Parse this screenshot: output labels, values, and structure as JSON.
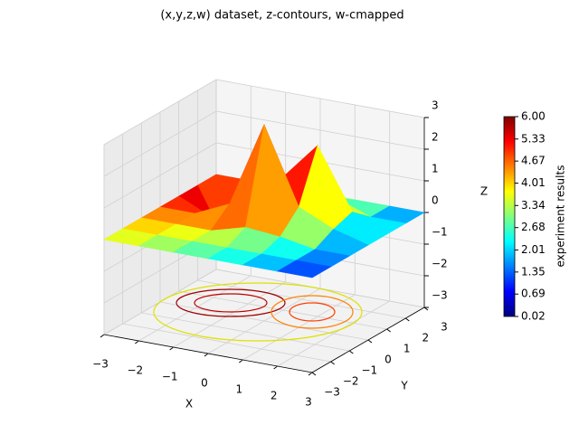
{
  "chart_data": {
    "type": "surface3d",
    "title": "(x,y,z,w) dataset, z-contours, w-cmapped",
    "xlabel": "X",
    "ylabel": "Y",
    "zlabel": "Z",
    "xlim": [
      -3,
      3
    ],
    "ylim": [
      -3,
      3
    ],
    "zlim": [
      -3,
      3
    ],
    "xticks": [
      {
        "value": -3,
        "label": "−3"
      },
      {
        "value": -2,
        "label": "−2"
      },
      {
        "value": -1,
        "label": "−1"
      },
      0,
      1,
      2,
      3
    ],
    "yticks": [
      {
        "value": -3,
        "label": "−3"
      },
      {
        "value": -2,
        "label": "−2"
      },
      {
        "value": -1,
        "label": "−1"
      },
      0,
      1,
      2,
      3
    ],
    "zticks": [
      {
        "value": -3,
        "label": "−3"
      },
      {
        "value": -2,
        "label": "−2"
      },
      {
        "value": -1,
        "label": "−1"
      },
      0,
      1,
      2,
      3
    ],
    "grid": true,
    "colormap": "jet",
    "surface": {
      "x": [
        -3,
        -2,
        -1,
        0,
        1,
        2,
        3
      ],
      "y": [
        -3,
        -2,
        -1,
        0,
        1,
        2,
        3
      ],
      "z": [
        [
          0,
          0,
          0,
          0,
          0,
          0,
          0
        ],
        [
          0,
          0,
          0,
          0,
          0,
          0,
          0
        ],
        [
          0,
          0,
          0,
          0.3,
          0.2,
          0,
          0
        ],
        [
          0,
          0,
          0.5,
          3.2,
          0.8,
          0.3,
          0
        ],
        [
          0,
          -0.5,
          0.3,
          1.2,
          2.4,
          0.5,
          0
        ],
        [
          0,
          -2,
          -0.3,
          0.2,
          0.4,
          0,
          0
        ],
        [
          0,
          0,
          0,
          0,
          0,
          0,
          0
        ]
      ],
      "w": [
        [
          3.6,
          3.2,
          2.8,
          2.4,
          2.0,
          1.4,
          0.8
        ],
        [
          4.0,
          3.6,
          3.2,
          2.8,
          2.4,
          1.8,
          1.0
        ],
        [
          4.4,
          4.0,
          3.8,
          3.6,
          3.0,
          2.2,
          1.2
        ],
        [
          4.8,
          4.6,
          5.2,
          5.9,
          4.8,
          2.6,
          1.4
        ],
        [
          5.2,
          5.4,
          5.6,
          5.2,
          4.6,
          3.0,
          1.6
        ],
        [
          5.0,
          5.8,
          5.0,
          4.2,
          3.6,
          2.6,
          1.4
        ],
        [
          4.6,
          4.2,
          3.8,
          3.2,
          2.6,
          2.0,
          1.2
        ]
      ]
    },
    "clim": [
      0.02,
      6.0
    ],
    "colorbar_label": "experiment results",
    "colorbar_ticks": [
      0.02,
      0.69,
      1.35,
      2.01,
      2.68,
      3.34,
      4.01,
      4.67,
      5.33,
      {
        "value": 6.0,
        "label": "6.00"
      }
    ]
  }
}
